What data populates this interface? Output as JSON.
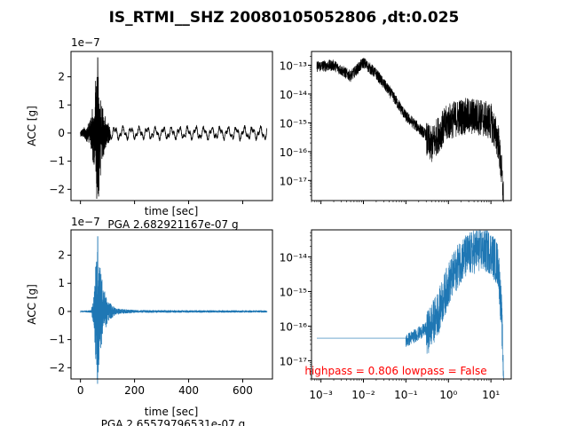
{
  "title": "IS_RTMI__SHZ 20080105052806 ,dt:0.025",
  "colors": {
    "raw": "#000000",
    "filtered": "#1f77b4",
    "annotation": "#ff0000",
    "axes": "#000000"
  },
  "chart_data": [
    {
      "type": "line",
      "panel": "top-left",
      "color": "#000000",
      "xlabel": "time [sec]",
      "ylabel": "ACC [g]",
      "offset_label": "1e−7",
      "ylim": [
        -2.4,
        2.9
      ],
      "xlim": [
        -35,
        710
      ],
      "yticks": [
        -2,
        -1,
        0,
        1,
        2
      ],
      "ytick_labels": [
        "−2",
        "−1",
        "0",
        "1",
        "2"
      ],
      "xticks": [
        0,
        200,
        400,
        600
      ],
      "xtick_labels": [],
      "envelope": [
        [
          0,
          0.12
        ],
        [
          10,
          0.18
        ],
        [
          22,
          0.3
        ],
        [
          35,
          0.4
        ],
        [
          48,
          1.1
        ],
        [
          58,
          2.2
        ],
        [
          64,
          2.68
        ],
        [
          70,
          2.0
        ],
        [
          80,
          1.0
        ],
        [
          95,
          0.5
        ],
        [
          110,
          0.32
        ],
        [
          150,
          0.22
        ],
        [
          250,
          0.2
        ],
        [
          400,
          0.2
        ],
        [
          550,
          0.2
        ],
        [
          690,
          0.18
        ]
      ],
      "peak": {
        "time": 64,
        "max": 2.68,
        "min": -2.15
      },
      "note": "PGA 2.682921167e-07 g"
    },
    {
      "type": "line",
      "panel": "top-right",
      "color": "#000000",
      "scale": "log-log",
      "xlim": [
        0.0006,
        30
      ],
      "ylim": [
        2e-18,
        3e-13
      ],
      "yticks": [
        1e-17,
        1e-16,
        1e-15,
        1e-14,
        1e-13
      ],
      "ytick_labels": [
        "10⁻¹⁷",
        "10⁻¹⁶",
        "10⁻¹⁵",
        "10⁻¹⁴",
        "10⁻¹³"
      ],
      "xtick_labels": [],
      "spectrum_shape": [
        [
          0.0008,
          1.1e-13
        ],
        [
          0.002,
          1.2e-13
        ],
        [
          0.005,
          5e-14
        ],
        [
          0.01,
          1.5e-13
        ],
        [
          0.02,
          6e-14
        ],
        [
          0.05,
          1e-14
        ],
        [
          0.1,
          2e-15
        ],
        [
          0.2,
          8e-16
        ],
        [
          0.4,
          3e-16
        ],
        [
          0.6,
          8e-16
        ],
        [
          1,
          2e-15
        ],
        [
          2,
          3e-15
        ],
        [
          5,
          3e-15
        ],
        [
          10,
          2e-15
        ],
        [
          15,
          4e-16
        ],
        [
          18,
          3e-17
        ],
        [
          20,
          3e-18
        ]
      ]
    },
    {
      "type": "line",
      "panel": "bottom-left",
      "color": "#1f77b4",
      "xlabel": "time [sec]",
      "ylabel": "ACC [g]",
      "offset_label": "1e−7",
      "ylim": [
        -2.4,
        2.9
      ],
      "xlim": [
        -35,
        710
      ],
      "yticks": [
        -2,
        -1,
        0,
        1,
        2
      ],
      "ytick_labels": [
        "−2",
        "−1",
        "0",
        "1",
        "2"
      ],
      "xticks": [
        0,
        200,
        400,
        600
      ],
      "xtick_labels": [
        "0",
        "200",
        "400",
        "600"
      ],
      "envelope": [
        [
          0,
          0.02
        ],
        [
          40,
          0.05
        ],
        [
          50,
          0.6
        ],
        [
          58,
          2.2
        ],
        [
          64,
          2.66
        ],
        [
          72,
          1.6
        ],
        [
          85,
          0.9
        ],
        [
          100,
          0.4
        ],
        [
          130,
          0.12
        ],
        [
          200,
          0.05
        ],
        [
          690,
          0.04
        ]
      ],
      "peak": {
        "time": 64,
        "max": 2.66,
        "min": -2.15
      },
      "note": "PGA 2.65579796531e-07 g"
    },
    {
      "type": "line",
      "panel": "bottom-right",
      "color": "#1f77b4",
      "scale": "log-log",
      "xlim": [
        0.0006,
        30
      ],
      "ylim": [
        3e-18,
        6e-14
      ],
      "yticks": [
        1e-17,
        1e-16,
        1e-15,
        1e-14
      ],
      "ytick_labels": [
        "10⁻¹⁷",
        "10⁻¹⁶",
        "10⁻¹⁵",
        "10⁻¹⁴"
      ],
      "xticks": [
        0.001,
        0.01,
        0.1,
        1,
        10
      ],
      "xtick_labels": [
        "10⁻³",
        "10⁻²",
        "10⁻¹",
        "10⁰",
        "10¹"
      ],
      "spectrum_shape": [
        [
          0.0008,
          4.5e-17
        ],
        [
          0.1,
          4.5e-17
        ],
        [
          0.3,
          1e-16
        ],
        [
          0.6,
          5e-16
        ],
        [
          1,
          3e-15
        ],
        [
          2,
          1.5e-14
        ],
        [
          5,
          3e-14
        ],
        [
          10,
          2.5e-14
        ],
        [
          15,
          1e-14
        ],
        [
          18,
          3e-16
        ],
        [
          20,
          4e-18
        ]
      ],
      "annotation": "highpass = 0.806 lowpass = False"
    }
  ]
}
